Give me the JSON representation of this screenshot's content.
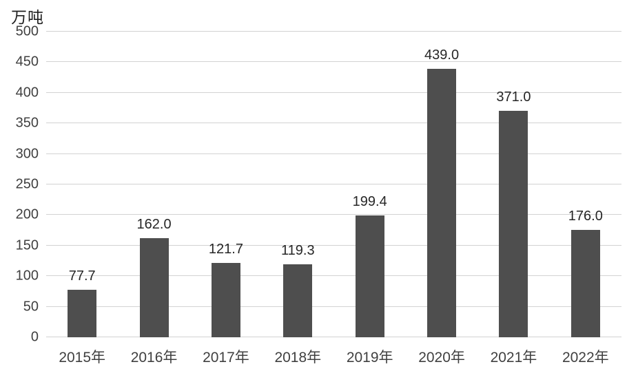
{
  "chart_data": {
    "type": "bar",
    "title": "",
    "xlabel": "",
    "ylabel": "万吨",
    "categories": [
      "2015年",
      "2016年",
      "2017年",
      "2018年",
      "2019年",
      "2020年",
      "2021年",
      "2022年"
    ],
    "values": [
      77.7,
      162.0,
      121.7,
      119.3,
      199.4,
      439.0,
      371.0,
      176.0
    ],
    "value_labels": [
      "77.7",
      "162.0",
      "121.7",
      "119.3",
      "199.4",
      "439.0",
      "371.0",
      "176.0"
    ],
    "ylim": [
      0,
      500
    ],
    "ytick_step": 50,
    "ytick_labels": [
      "0",
      "50",
      "100",
      "150",
      "200",
      "250",
      "300",
      "350",
      "400",
      "450",
      "500"
    ],
    "grid": "horizontal",
    "legend": "none",
    "bar_color": "#4e4e4e",
    "grid_color": "#d2d2d2",
    "tick_text_color": "#404040",
    "label_text_color": "#262626"
  }
}
